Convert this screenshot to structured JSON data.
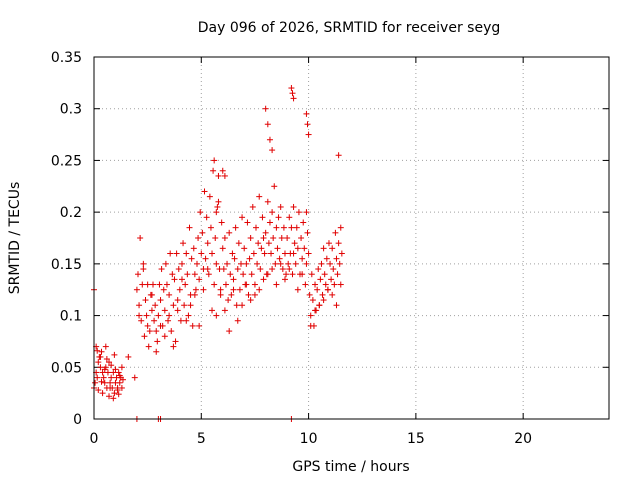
{
  "chart_data": {
    "type": "scatter",
    "title": "Day 096 of 2026, SRMTID for receiver seyg",
    "xlabel": "GPS time / hours",
    "ylabel": "SRMTID / TECUs",
    "xlim": [
      0,
      24
    ],
    "ylim": [
      0,
      0.35
    ],
    "xticks": [
      0,
      5,
      10,
      15,
      20
    ],
    "yticks": [
      0,
      0.05,
      0.1,
      0.15,
      0.2,
      0.25,
      0.3,
      0.35
    ],
    "xtick_labels": [
      "0",
      "5",
      "10",
      "15",
      "20"
    ],
    "ytick_labels": [
      "0",
      "0.05",
      "0.1",
      "0.15",
      "0.2",
      "0.25",
      "0.3",
      "0.35"
    ],
    "grid": true,
    "marker": "+",
    "color": "#e00000",
    "series": [
      {
        "name": "SRMTID",
        "x": [
          0.0,
          0.05,
          0.1,
          0.15,
          0.2,
          0.25,
          0.3,
          0.35,
          0.4,
          0.45,
          0.5,
          0.55,
          0.6,
          0.65,
          0.7,
          0.75,
          0.8,
          0.85,
          0.9,
          0.95,
          1.0,
          1.05,
          1.1,
          1.15,
          1.2,
          1.25,
          1.3,
          1.35,
          0.1,
          0.2,
          0.3,
          0.4,
          0.5,
          0.6,
          0.7,
          0.8,
          0.9,
          1.0,
          1.1,
          1.2,
          1.3,
          0.15,
          0.35,
          0.55,
          0.75,
          0.95,
          1.15,
          2.0,
          2.05,
          2.1,
          2.15,
          2.2,
          2.25,
          2.3,
          2.35,
          2.4,
          2.45,
          2.5,
          2.55,
          2.6,
          2.65,
          2.7,
          2.75,
          2.8,
          2.85,
          2.9,
          2.95,
          3.0,
          3.05,
          3.1,
          3.15,
          3.2,
          3.25,
          3.3,
          3.35,
          3.4,
          3.45,
          3.5,
          3.55,
          3.6,
          3.65,
          3.7,
          3.75,
          3.8,
          3.85,
          3.9,
          3.95,
          4.0,
          4.05,
          4.1,
          4.15,
          4.2,
          4.25,
          4.3,
          4.35,
          4.4,
          4.45,
          4.5,
          4.55,
          4.6,
          4.65,
          4.7,
          4.75,
          4.8,
          4.85,
          4.9,
          4.95,
          5.0,
          5.05,
          5.1,
          5.15,
          5.2,
          5.25,
          5.3,
          5.35,
          5.4,
          5.45,
          5.5,
          5.55,
          5.6,
          5.65,
          5.7,
          5.75,
          5.8,
          5.85,
          5.9,
          5.95,
          6.0,
          6.05,
          6.1,
          6.15,
          6.2,
          6.25,
          6.3,
          6.35,
          6.4,
          6.45,
          6.5,
          6.55,
          6.6,
          6.65,
          6.7,
          6.75,
          6.8,
          6.85,
          6.9,
          6.95,
          7.0,
          7.05,
          7.1,
          7.15,
          7.2,
          7.25,
          7.3,
          7.35,
          7.4,
          7.45,
          7.5,
          7.55,
          7.6,
          7.65,
          7.7,
          7.75,
          7.8,
          7.85,
          7.9,
          7.95,
          8.0,
          8.05,
          8.1,
          8.15,
          8.2,
          8.25,
          8.3,
          8.35,
          8.4,
          8.45,
          8.5,
          8.55,
          8.6,
          8.65,
          8.7,
          8.75,
          8.8,
          8.85,
          8.9,
          8.95,
          9.0,
          9.05,
          9.1,
          9.15,
          9.2,
          9.25,
          9.3,
          9.35,
          9.4,
          9.45,
          9.5,
          9.55,
          9.6,
          9.65,
          9.7,
          9.75,
          9.8,
          9.85,
          9.9,
          9.95,
          10.0,
          10.05,
          10.1,
          10.15,
          10.2,
          10.25,
          10.3,
          10.35,
          10.4,
          10.45,
          10.5,
          10.55,
          10.6,
          10.65,
          10.7,
          10.75,
          10.8,
          10.85,
          10.9,
          10.95,
          11.0,
          11.05,
          11.1,
          11.15,
          11.2,
          11.25,
          11.3,
          11.35,
          11.4,
          11.45,
          11.5,
          11.55,
          2.1,
          2.3,
          2.5,
          2.7,
          2.9,
          3.1,
          3.3,
          3.5,
          3.7,
          3.9,
          4.1,
          4.3,
          4.5,
          4.7,
          4.9,
          5.1,
          5.3,
          5.5,
          5.7,
          5.9,
          6.1,
          6.3,
          6.5,
          6.7,
          6.9,
          7.1,
          7.3,
          7.5,
          7.7,
          7.9,
          8.1,
          8.3,
          8.5,
          8.7,
          8.9,
          9.1,
          9.3,
          9.5,
          9.7,
          9.9,
          10.1,
          10.3,
          10.5,
          10.7,
          10.9,
          11.1,
          11.3,
          11.5,
          5.6,
          5.7,
          5.8,
          6.0,
          6.1,
          8.0,
          8.1,
          8.2,
          8.3,
          9.2,
          9.25,
          9.3,
          9.9,
          9.95,
          10.0,
          11.4,
          0.0,
          1.6,
          1.9,
          2.0,
          3.0,
          3.1,
          9.2
        ],
        "y": [
          0.03,
          0.035,
          0.045,
          0.04,
          0.055,
          0.06,
          0.05,
          0.065,
          0.045,
          0.04,
          0.035,
          0.05,
          0.03,
          0.045,
          0.055,
          0.035,
          0.04,
          0.03,
          0.045,
          0.025,
          0.035,
          0.04,
          0.03,
          0.045,
          0.035,
          0.04,
          0.03,
          0.038,
          0.07,
          0.028,
          0.06,
          0.025,
          0.048,
          0.058,
          0.022,
          0.052,
          0.02,
          0.048,
          0.028,
          0.042,
          0.05,
          0.066,
          0.036,
          0.07,
          0.03,
          0.062,
          0.024,
          0.125,
          0.14,
          0.11,
          0.175,
          0.095,
          0.13,
          0.15,
          0.08,
          0.115,
          0.1,
          0.09,
          0.07,
          0.085,
          0.12,
          0.105,
          0.13,
          0.095,
          0.11,
          0.085,
          0.075,
          0.1,
          0.13,
          0.115,
          0.145,
          0.09,
          0.125,
          0.105,
          0.15,
          0.13,
          0.095,
          0.12,
          0.16,
          0.085,
          0.14,
          0.11,
          0.135,
          0.075,
          0.16,
          0.115,
          0.145,
          0.125,
          0.095,
          0.15,
          0.17,
          0.11,
          0.13,
          0.16,
          0.14,
          0.1,
          0.185,
          0.12,
          0.155,
          0.09,
          0.165,
          0.14,
          0.125,
          0.15,
          0.175,
          0.135,
          0.2,
          0.16,
          0.18,
          0.145,
          0.22,
          0.155,
          0.195,
          0.17,
          0.14,
          0.215,
          0.185,
          0.16,
          0.24,
          0.13,
          0.175,
          0.15,
          0.205,
          0.235,
          0.145,
          0.125,
          0.19,
          0.165,
          0.145,
          0.175,
          0.13,
          0.15,
          0.115,
          0.18,
          0.14,
          0.12,
          0.16,
          0.135,
          0.155,
          0.185,
          0.11,
          0.145,
          0.17,
          0.125,
          0.15,
          0.195,
          0.14,
          0.165,
          0.13,
          0.15,
          0.19,
          0.12,
          0.155,
          0.175,
          0.14,
          0.205,
          0.16,
          0.13,
          0.185,
          0.15,
          0.17,
          0.215,
          0.145,
          0.165,
          0.195,
          0.175,
          0.16,
          0.18,
          0.14,
          0.21,
          0.17,
          0.19,
          0.16,
          0.2,
          0.175,
          0.225,
          0.15,
          0.185,
          0.165,
          0.195,
          0.155,
          0.205,
          0.175,
          0.145,
          0.185,
          0.16,
          0.14,
          0.175,
          0.15,
          0.195,
          0.16,
          0.185,
          0.14,
          0.205,
          0.17,
          0.15,
          0.185,
          0.165,
          0.2,
          0.14,
          0.175,
          0.155,
          0.19,
          0.165,
          0.13,
          0.2,
          0.18,
          0.16,
          0.12,
          0.1,
          0.14,
          0.115,
          0.09,
          0.13,
          0.105,
          0.125,
          0.145,
          0.11,
          0.135,
          0.15,
          0.12,
          0.165,
          0.14,
          0.13,
          0.155,
          0.125,
          0.17,
          0.15,
          0.135,
          0.165,
          0.145,
          0.13,
          0.18,
          0.155,
          0.14,
          0.17,
          0.15,
          0.185,
          0.16,
          0.1,
          0.145,
          0.13,
          0.12,
          0.065,
          0.09,
          0.08,
          0.1,
          0.07,
          0.105,
          0.135,
          0.095,
          0.11,
          0.12,
          0.09,
          0.125,
          0.145,
          0.105,
          0.1,
          0.12,
          0.105,
          0.085,
          0.125,
          0.095,
          0.11,
          0.13,
          0.115,
          0.12,
          0.125,
          0.135,
          0.14,
          0.145,
          0.13,
          0.15,
          0.135,
          0.145,
          0.16,
          0.125,
          0.14,
          0.15,
          0.09,
          0.105,
          0.11,
          0.115,
          0.125,
          0.12,
          0.11,
          0.13,
          0.25,
          0.2,
          0.21,
          0.24,
          0.235,
          0.3,
          0.285,
          0.27,
          0.26,
          0.32,
          0.315,
          0.31,
          0.295,
          0.285,
          0.275,
          0.255,
          0.125,
          0.06,
          0.04,
          0.0,
          0.0,
          0.0,
          0.0
        ]
      }
    ]
  }
}
